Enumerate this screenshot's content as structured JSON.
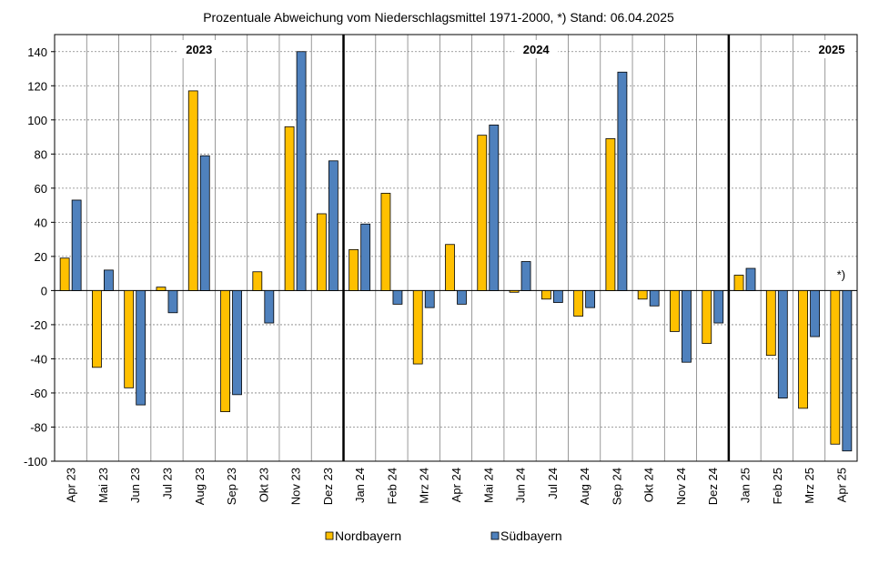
{
  "chart_data": {
    "type": "bar",
    "title": "Prozentuale Abweichung vom Niederschlagsmittel 1971-2000,  *) Stand:  06.04.2025",
    "categories": [
      "Apr 23",
      "Mai 23",
      "Jun 23",
      "Jul 23",
      "Aug 23",
      "Sep 23",
      "Okt 23",
      "Nov 23",
      "Dez 23",
      "Jan 24",
      "Feb 24",
      "Mrz 24",
      "Apr 24",
      "Mai 24",
      "Jun 24",
      "Jul 24",
      "Aug 24",
      "Sep 24",
      "Okt 24",
      "Nov 24",
      "Dez 24",
      "Jan 25",
      "Feb 25",
      "Mrz 25",
      "Apr 25"
    ],
    "series": [
      {
        "name": "Nordbayern",
        "color": "#FFC000",
        "values": [
          19,
          -45,
          -57,
          2,
          117,
          -71,
          11,
          96,
          45,
          24,
          57,
          -43,
          27,
          91,
          -1,
          -5,
          -15,
          89,
          -5,
          -24,
          -31,
          9,
          -38,
          -69,
          -90
        ]
      },
      {
        "name": "Südbayern",
        "color": "#4F81BD",
        "values": [
          53,
          12,
          -67,
          -13,
          79,
          -61,
          -19,
          140,
          76,
          39,
          -8,
          -10,
          -8,
          97,
          17,
          -7,
          -10,
          128,
          -9,
          -42,
          -19,
          13,
          -63,
          -27,
          -94
        ]
      }
    ],
    "ylim": [
      -100,
      150
    ],
    "yticks": [
      140,
      120,
      100,
      80,
      60,
      40,
      20,
      0,
      -20,
      -40,
      -60,
      -80,
      -100
    ],
    "year_groups": [
      {
        "label": "2023",
        "start": 0,
        "end": 8
      },
      {
        "label": "2024",
        "start": 9,
        "end": 20
      },
      {
        "label": "2025",
        "start": 21,
        "end": 24
      }
    ],
    "annotation": {
      "text": "*)",
      "category": "Apr 25"
    },
    "grid": true,
    "legend_position": "bottom"
  }
}
